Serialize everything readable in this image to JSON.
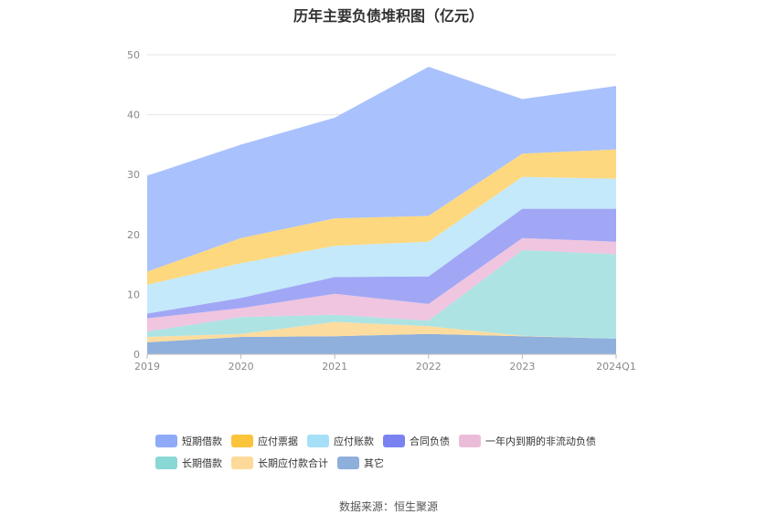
{
  "chart_data": {
    "type": "area",
    "stacked": true,
    "title": "历年主要负债堆积图（亿元）",
    "x": [
      "2019",
      "2020",
      "2021",
      "2022",
      "2023",
      "2024Q1"
    ],
    "ylim": [
      0,
      50
    ],
    "yticks": [
      "0",
      "10",
      "20",
      "30",
      "40",
      "50"
    ],
    "grid": true,
    "legend_position": "bottom",
    "series": [
      {
        "name": "其它",
        "color": "#8fb0dc",
        "values": [
          2.0,
          2.9,
          3.0,
          3.4,
          3.0,
          2.6
        ]
      },
      {
        "name": "长期应付款合计",
        "color": "#fddc9f",
        "values": [
          0.9,
          0.5,
          2.4,
          1.3,
          0.1,
          0.0
        ]
      },
      {
        "name": "长期借款",
        "color": "#aee3e3",
        "values": [
          0.9,
          2.8,
          1.2,
          0.9,
          14.3,
          14.1
        ]
      },
      {
        "name": "一年内到期的非流动负债",
        "color": "#efc5e0",
        "values": [
          2.2,
          1.5,
          3.5,
          2.8,
          2.0,
          2.1
        ]
      },
      {
        "name": "合同负债",
        "color": "#a1a7f5",
        "values": [
          0.8,
          1.7,
          2.8,
          4.6,
          4.9,
          5.5
        ]
      },
      {
        "name": "应付账款",
        "color": "#c4e9fb",
        "values": [
          4.8,
          5.8,
          5.2,
          5.8,
          5.3,
          5.0
        ]
      },
      {
        "name": "应付票据",
        "color": "#fed87f",
        "values": [
          2.2,
          4.2,
          4.6,
          4.3,
          3.9,
          4.9
        ]
      },
      {
        "name": "短期借款",
        "color": "#a9c1fd",
        "values": [
          16.0,
          15.6,
          16.8,
          24.9,
          9.1,
          10.6
        ]
      }
    ],
    "legend": [
      {
        "name": "短期借款",
        "color": "#8faaf9"
      },
      {
        "name": "应付票据",
        "color": "#fcc33c"
      },
      {
        "name": "应付账款",
        "color": "#a6dff8"
      },
      {
        "name": "合同负债",
        "color": "#7a82f2"
      },
      {
        "name": "一年内到期的非流动负债",
        "color": "#ebbcd8"
      },
      {
        "name": "长期借款",
        "color": "#89d8d6"
      },
      {
        "name": "长期应付款合计",
        "color": "#fdd99a"
      },
      {
        "name": "其它",
        "color": "#8fafdb"
      }
    ]
  },
  "source_text": "数据来源：恒生聚源"
}
